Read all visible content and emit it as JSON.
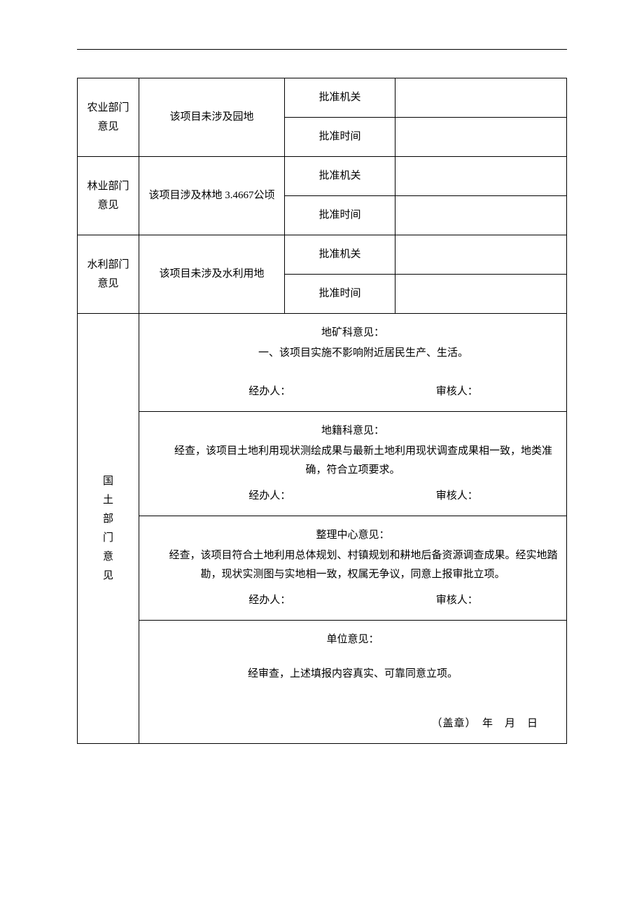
{
  "rule_color": "#000000",
  "rows": {
    "agri": {
      "label": "农业部门意见",
      "content": "该项目未涉及园地",
      "approve_org_label": "批准机关",
      "approve_time_label": "批准时间"
    },
    "forestry": {
      "label": "林业部门意见",
      "content": "该项目涉及林地 3.4667公顷",
      "approve_org_label": "批准机关",
      "approve_time_label": "批准时间"
    },
    "water": {
      "label": "水利部门意见",
      "content": "该项目未涉及水利用地",
      "approve_org_label": "批准机关",
      "approve_time_label": "批准时间"
    }
  },
  "land_dept": {
    "vertical_label": "国　土　部　门　意　见",
    "sections": {
      "geomin": {
        "title": "地矿科意见：",
        "body": "一、该项目实施不影响附近居民生产、生活。",
        "handler_label": "经办人：",
        "reviewer_label": "审核人："
      },
      "cadastre": {
        "title": "地籍科意见：",
        "body": "经查，该项目土地利用现状测绘成果与最新土地利用现状调查成果相一致，地类准确，符合立项要求。",
        "handler_label": "经办人：",
        "reviewer_label": "审核人："
      },
      "center": {
        "title": "整理中心意见：",
        "body": "经查，该项目符合土地利用总体规划、村镇规划和耕地后备资源调查成果。经实地踏勘，现状实测图与实地相一致，权属无争议，同意上报审批立项。",
        "handler_label": "经办人：",
        "reviewer_label": "审核人："
      },
      "unit": {
        "title": "单位意见：",
        "body": "经审查，上述填报内容真实、可靠同意立项。",
        "seal": "（盖章）　年　月　日"
      }
    }
  }
}
